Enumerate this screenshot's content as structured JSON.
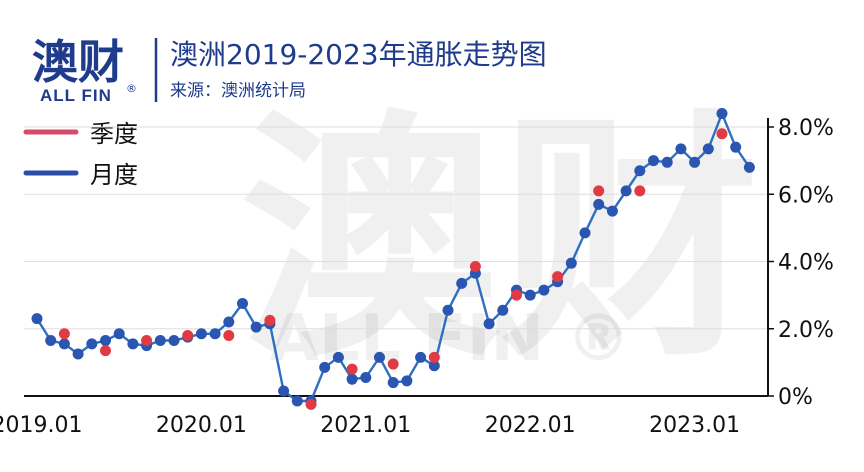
{
  "brand": {
    "logo_text": "澳财",
    "logo_sub": "ALL FIN",
    "logo_mark": "®"
  },
  "watermark": {
    "text": "澳财",
    "sub": "ALL FIN ®"
  },
  "colors": {
    "accent": "#1f3b8c",
    "monthly": "#2f6fc0",
    "monthly_dot": "#2a55b0",
    "quarterly": "#e03a45",
    "legend_quarterly": "#d64a6a",
    "legend_monthly": "#2a4ea8"
  },
  "chart_data": {
    "type": "line",
    "title": "澳洲2019-2023年通胀走势图",
    "subtitle": "来源：澳洲统计局",
    "xlabel": "",
    "ylabel": "",
    "ylim": [
      0,
      8.5
    ],
    "grid": true,
    "legend_position": "top-left",
    "y_ticks": [
      "0%",
      "2.0%",
      "4.0%",
      "6.0%",
      "8.0%"
    ],
    "x_ticks": [
      "2019.01",
      "2020.01",
      "2021.01",
      "2022.01",
      "2023.01"
    ],
    "x_tick_indices": [
      0,
      12,
      24,
      36,
      48
    ],
    "series": [
      {
        "name": "月度",
        "values": [
          2.3,
          1.65,
          1.55,
          1.25,
          1.55,
          1.65,
          1.85,
          1.55,
          1.5,
          1.65,
          1.65,
          1.75,
          1.85,
          1.85,
          2.2,
          2.75,
          2.05,
          2.15,
          0.15,
          -0.15,
          -0.15,
          0.85,
          1.15,
          0.5,
          0.55,
          1.15,
          0.4,
          0.45,
          1.15,
          0.9,
          2.55,
          3.35,
          3.65,
          2.15,
          2.55,
          3.15,
          3.0,
          3.15,
          3.4,
          3.95,
          4.85,
          5.7,
          5.5,
          6.1,
          6.7,
          7.0,
          6.95,
          7.35,
          6.95,
          7.35,
          8.4,
          7.4,
          6.8
        ],
        "x_indices": [
          0,
          1,
          2,
          3,
          4,
          5,
          6,
          7,
          8,
          9,
          10,
          11,
          12,
          13,
          14,
          15,
          16,
          17,
          18,
          19,
          20,
          21,
          22,
          23,
          24,
          25,
          26,
          27,
          28,
          29,
          30,
          31,
          32,
          33,
          34,
          35,
          36,
          37,
          38,
          39,
          40,
          41,
          42,
          43,
          44,
          45,
          46,
          47,
          48,
          49,
          50,
          51,
          52
        ]
      },
      {
        "name": "季度",
        "x_indices": [
          2,
          5,
          8,
          11,
          14,
          17,
          20,
          23,
          26,
          29,
          32,
          35,
          38,
          41,
          44,
          50
        ],
        "values": [
          1.85,
          1.35,
          1.65,
          1.8,
          1.8,
          2.25,
          -0.25,
          0.8,
          0.95,
          1.15,
          3.85,
          3.0,
          3.55,
          6.1,
          6.1,
          7.8
        ]
      }
    ]
  }
}
